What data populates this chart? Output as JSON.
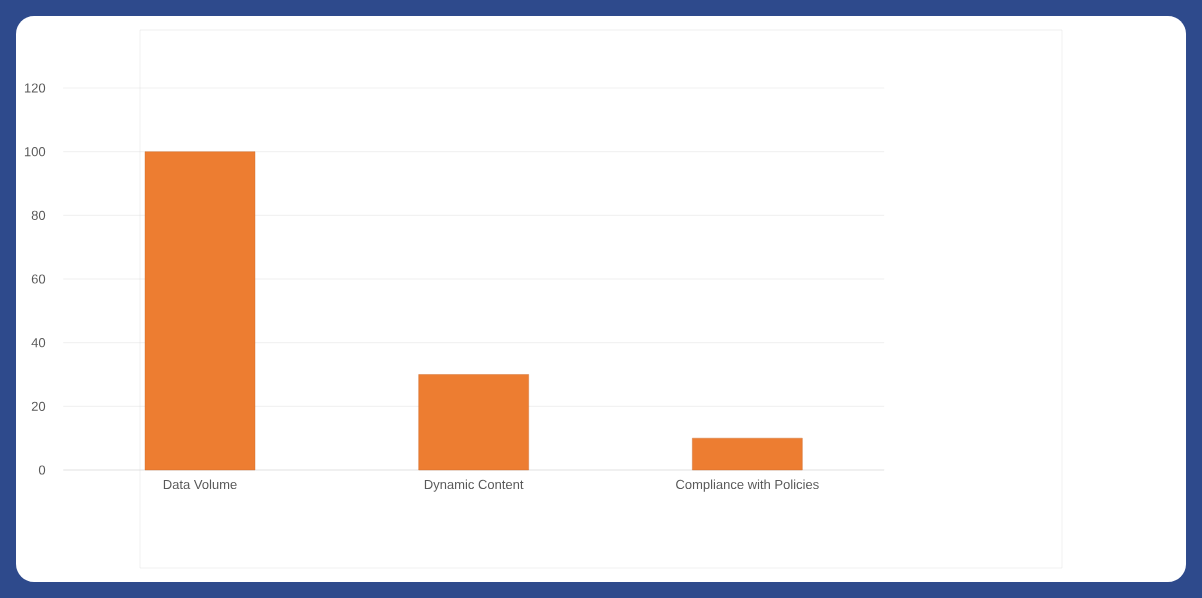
{
  "chart_data": {
    "type": "bar",
    "categories": [
      "Data Volume",
      "Dynamic Content",
      "Compliance with Policies"
    ],
    "values": [
      100,
      30,
      10
    ],
    "color": "#ed7d31",
    "ylim": [
      0,
      120
    ],
    "yticks": [
      0,
      20,
      40,
      60,
      80,
      100,
      120
    ],
    "grid": "y"
  }
}
